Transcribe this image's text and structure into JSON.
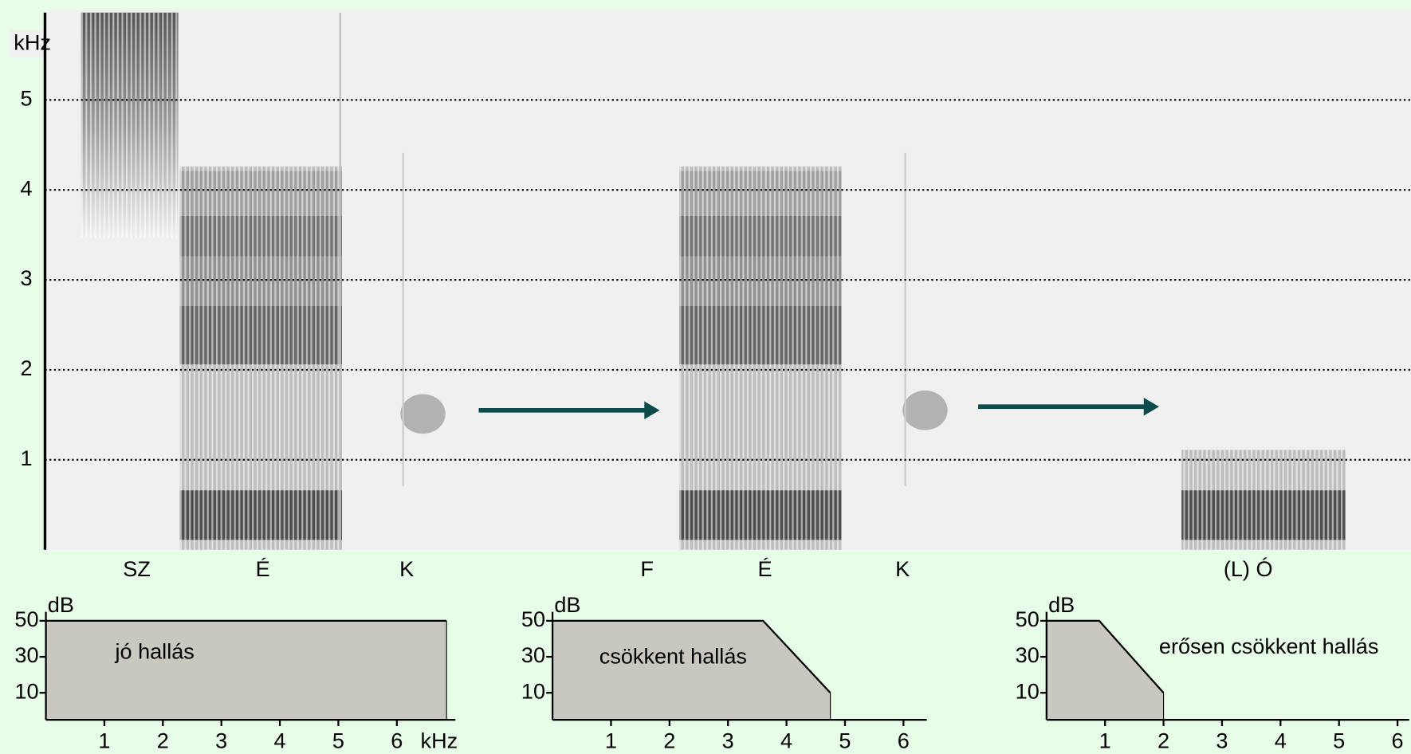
{
  "chart_data": [
    {
      "type": "spectrogram",
      "ylabel": "kHz",
      "ylim": [
        0,
        6
      ],
      "yticks": [
        1,
        2,
        3,
        4,
        5
      ],
      "grid": true,
      "segments": [
        "SZ",
        "É",
        "K",
        "F",
        "É",
        "K",
        "(L) Ó"
      ]
    },
    {
      "type": "area",
      "ylabel": "dB",
      "xlabel": "kHz",
      "text": "jó hallás",
      "x": [
        0,
        6.85
      ],
      "values": [
        50,
        50
      ],
      "xlim": [
        0,
        7
      ],
      "ylim": [
        -5,
        55
      ],
      "xticks": [
        1,
        2,
        3,
        4,
        5,
        6
      ],
      "yticks": [
        10,
        30,
        50
      ],
      "color": "#c8c8c0"
    },
    {
      "type": "area",
      "ylabel": "dB",
      "text": "csökkent hallás",
      "x": [
        0,
        3.6,
        4.75
      ],
      "values": [
        50,
        50,
        10
      ],
      "xlim": [
        0,
        6.4
      ],
      "ylim": [
        -5,
        55
      ],
      "xticks": [
        1,
        2,
        3,
        4,
        5,
        6
      ],
      "yticks": [
        10,
        30,
        50
      ],
      "color": "#c8c8c0"
    },
    {
      "type": "area",
      "ylabel": "dB",
      "text": "erősen csökkent hallás",
      "x": [
        0,
        0.9,
        2
      ],
      "values": [
        50,
        50,
        10
      ],
      "xlim": [
        0,
        6.2
      ],
      "ylim": [
        -5,
        55
      ],
      "xticks": [
        1,
        2,
        3,
        4,
        5,
        6
      ],
      "yticks": [
        10,
        30,
        50
      ],
      "color": "#c8c8c0"
    }
  ]
}
